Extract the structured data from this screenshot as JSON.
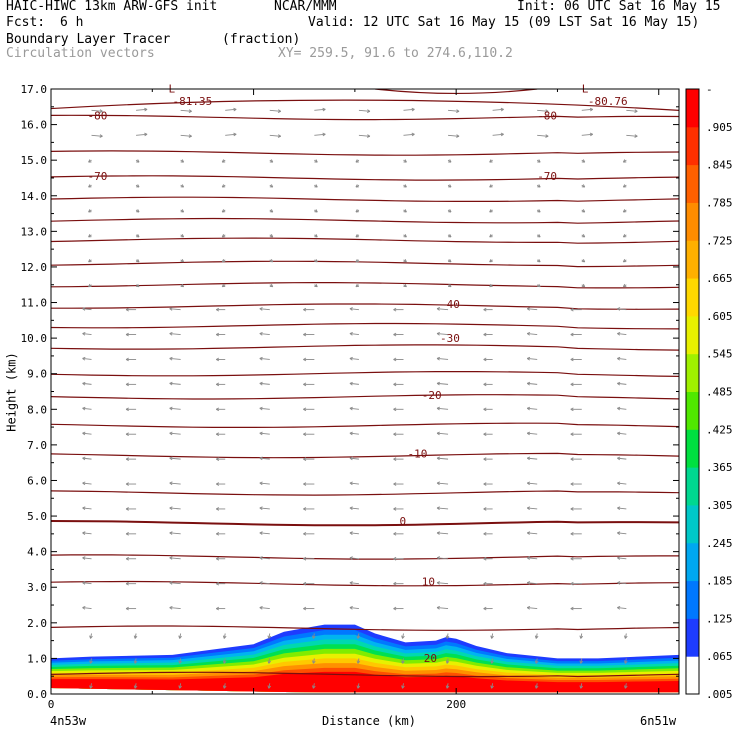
{
  "header": {
    "model": "HAIC-HIWC 13km ARW-GFS init",
    "org": "NCAR/MMM",
    "init": "Init: 06 UTC Sat 16 May 15",
    "fcst_label": "Fcst:",
    "fcst_value": "6 h",
    "valid": "Valid: 12 UTC Sat 16 May 15 (09 LST Sat 16 May 15)",
    "field_name": "Boundary Layer Tracer",
    "field_unit": "(fraction)",
    "overlay_name": "Circulation vectors",
    "xy_range": "XY= 259.5, 91.6 to 274.6,110.2"
  },
  "colors": {
    "contour": "#7a0f0f",
    "vector": "#8a8a8a",
    "frame": "#000000",
    "colorbar": [
      "#ffffff",
      "#1e3cff",
      "#0078ff",
      "#00a8f0",
      "#00c8c8",
      "#00d890",
      "#00e040",
      "#50e800",
      "#a0f000",
      "#e8f000",
      "#ffd800",
      "#ffb000",
      "#ff8c00",
      "#ff6000",
      "#ff3000",
      "#ff0000"
    ]
  },
  "chart_data": {
    "type": "cross-section",
    "title": "Boundary Layer Tracer",
    "ylabel": "Height (km)",
    "xlabel": "Distance (km)",
    "ylim": [
      0,
      17
    ],
    "xlim": [
      0,
      310
    ],
    "y_ticks": [
      "0.0",
      "1.0",
      "2.0",
      "3.0",
      "4.0",
      "5.0",
      "6.0",
      "7.0",
      "8.0",
      "9.0",
      "10.0",
      "11.0",
      "12.0",
      "13.0",
      "14.0",
      "15.0",
      "16.0",
      "17.0"
    ],
    "x_ticks": [
      {
        "value": 0,
        "label": "0"
      },
      {
        "value": 200,
        "label": "200"
      }
    ],
    "x_end_labels": {
      "left": "4n53w",
      "right": "6n51w"
    },
    "colorbar_labels": [
      "-",
      ".905",
      ".845",
      ".785",
      ".725",
      ".665",
      ".605",
      ".545",
      ".485",
      ".425",
      ".365",
      ".305",
      ".245",
      ".185",
      ".125",
      ".065",
      ".005"
    ],
    "contour_labels": [
      {
        "text": "-81.35",
        "x": 60,
        "y": 16.6
      },
      {
        "text": "-80.76",
        "x": 265,
        "y": 16.6
      },
      {
        "text": "-80",
        "x": 18,
        "y": 16.2
      },
      {
        "text": "-80",
        "x": 240,
        "y": 16.2
      },
      {
        "text": "-70",
        "x": 18,
        "y": 14.5
      },
      {
        "text": "-70",
        "x": 240,
        "y": 14.5
      },
      {
        "text": "-40",
        "x": 192,
        "y": 10.9
      },
      {
        "text": "-30",
        "x": 192,
        "y": 9.95
      },
      {
        "text": "-20",
        "x": 183,
        "y": 8.35
      },
      {
        "text": "-10",
        "x": 176,
        "y": 6.7
      },
      {
        "text": "0",
        "x": 172,
        "y": 4.8
      },
      {
        "text": "10",
        "x": 183,
        "y": 3.1
      },
      {
        "text": "20",
        "x": 184,
        "y": 0.95
      }
    ],
    "low_markers": [
      {
        "text": "L",
        "x": 58,
        "y": 16.9
      },
      {
        "text": "L",
        "x": 262,
        "y": 16.9
      }
    ]
  }
}
